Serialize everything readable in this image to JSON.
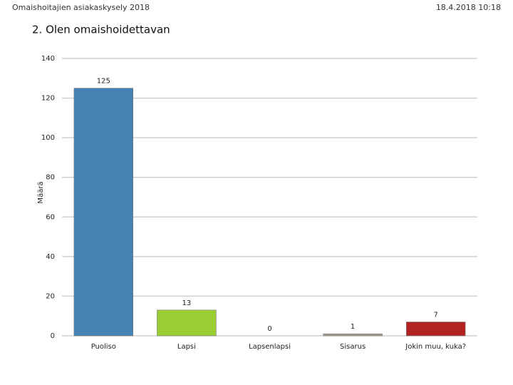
{
  "header": {
    "left": "Omaishoitajien asiakaskysely 2018",
    "right": "18.4.2018 10:18"
  },
  "chart_data": {
    "type": "bar",
    "title": "2. Olen omaishoidettavan",
    "ylabel": "Määrä",
    "categories": [
      "Puoliso",
      "Lapsi",
      "Lapsenlapsi",
      "Sisarus",
      "Jokin muu, kuka?"
    ],
    "values": [
      125,
      13,
      0,
      1,
      7
    ],
    "colors": [
      "#4682b4",
      "#9acd32",
      "#a9a9a9",
      "#a0998c",
      "#b22222"
    ],
    "ylim": [
      0,
      140
    ],
    "yticks": [
      0,
      20,
      40,
      60,
      80,
      100,
      120,
      140
    ],
    "grid": true
  }
}
